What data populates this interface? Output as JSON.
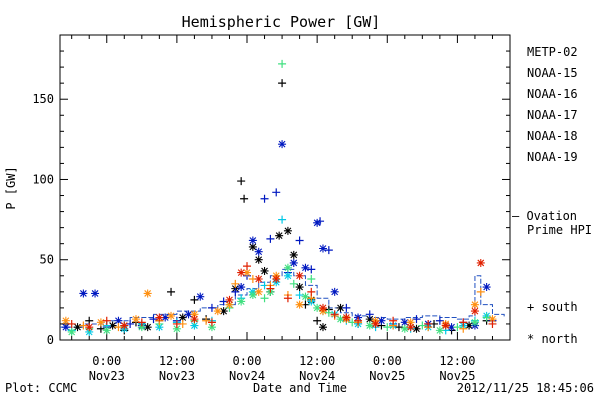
{
  "chart_data": {
    "type": "scatter",
    "title": "Hemispheric Power [GW]",
    "ylabel": "P [GW]",
    "xlabel": "Date and Time",
    "ylim": [
      0,
      190
    ],
    "xlim_hours": [
      -8,
      69
    ],
    "y_ticks": [
      "0",
      "50",
      "100",
      "150"
    ],
    "x_ticks": [
      {
        "hours": 0,
        "time": "0:00",
        "date": "Nov23"
      },
      {
        "hours": 12,
        "time": "12:00",
        "date": "Nov23"
      },
      {
        "hours": 24,
        "time": "0:00",
        "date": "Nov24"
      },
      {
        "hours": 36,
        "time": "12:00",
        "date": "Nov24"
      },
      {
        "hours": 48,
        "time": "0:00",
        "date": "Nov25"
      },
      {
        "hours": 60,
        "time": "12:00",
        "date": "Nov25"
      }
    ],
    "x_axis_unit": "hours since Nov23 0:00 UT",
    "series": [
      {
        "name": "METP-02",
        "color": "#000000",
        "points": [
          [
            -7,
            10,
            "s"
          ],
          [
            -5,
            8,
            "n"
          ],
          [
            -3,
            12,
            "s"
          ],
          [
            -1,
            7,
            "s"
          ],
          [
            1,
            9,
            "n"
          ],
          [
            3,
            6,
            "s"
          ],
          [
            5,
            11,
            "s"
          ],
          [
            7,
            8,
            "n"
          ],
          [
            9,
            12,
            "s"
          ],
          [
            11,
            30,
            "s"
          ],
          [
            13,
            14,
            "n"
          ],
          [
            15,
            25,
            "s"
          ],
          [
            17,
            13,
            "s"
          ],
          [
            20,
            18,
            "n"
          ],
          [
            22,
            32,
            "n"
          ],
          [
            23,
            99,
            "s"
          ],
          [
            23.5,
            88,
            "s"
          ],
          [
            25,
            58,
            "n"
          ],
          [
            26,
            50,
            "n"
          ],
          [
            27,
            43,
            "n"
          ],
          [
            28,
            30,
            "s"
          ],
          [
            29.5,
            65,
            "n"
          ],
          [
            30,
            160,
            "s"
          ],
          [
            31,
            68,
            "n"
          ],
          [
            32,
            53,
            "n"
          ],
          [
            33,
            33,
            "n"
          ],
          [
            34,
            22,
            "s"
          ],
          [
            35,
            25,
            "n"
          ],
          [
            36,
            12,
            "s"
          ],
          [
            37,
            8,
            "n"
          ],
          [
            38,
            19,
            "s"
          ],
          [
            40,
            20,
            "n"
          ],
          [
            41,
            14,
            "s"
          ],
          [
            43,
            10,
            "s"
          ],
          [
            45,
            13,
            "n"
          ],
          [
            47,
            9,
            "s"
          ],
          [
            50,
            8,
            "s"
          ],
          [
            53,
            7,
            "n"
          ],
          [
            56,
            10,
            "s"
          ],
          [
            59,
            6,
            "s"
          ],
          [
            62,
            9,
            "n"
          ],
          [
            65,
            12,
            "s"
          ]
        ]
      },
      {
        "name": "NOAA-15",
        "color": "#0018c0",
        "points": [
          [
            -7,
            8,
            "n"
          ],
          [
            -4,
            29,
            "n"
          ],
          [
            -2,
            29,
            "n"
          ],
          [
            0,
            8,
            "s"
          ],
          [
            2,
            12,
            "n"
          ],
          [
            4,
            10,
            "s"
          ],
          [
            6,
            9,
            "n"
          ],
          [
            8,
            13,
            "s"
          ],
          [
            10,
            14,
            "n"
          ],
          [
            12,
            12,
            "s"
          ],
          [
            14,
            16,
            "n"
          ],
          [
            16,
            27,
            "n"
          ],
          [
            18,
            20,
            "s"
          ],
          [
            20,
            24,
            "s"
          ],
          [
            22,
            30,
            "s"
          ],
          [
            23,
            33,
            "n"
          ],
          [
            24,
            40,
            "s"
          ],
          [
            25,
            62,
            "n"
          ],
          [
            26,
            55,
            "n"
          ],
          [
            27,
            88,
            "s"
          ],
          [
            28,
            63,
            "s"
          ],
          [
            29,
            92,
            "s"
          ],
          [
            30,
            122,
            "n"
          ],
          [
            31,
            42,
            "s"
          ],
          [
            32,
            48,
            "n"
          ],
          [
            33,
            62,
            "s"
          ],
          [
            34,
            45,
            "n"
          ],
          [
            35,
            44,
            "s"
          ],
          [
            36,
            73,
            "n"
          ],
          [
            36.5,
            74,
            "s"
          ],
          [
            37,
            57,
            "n"
          ],
          [
            38,
            56,
            "s"
          ],
          [
            39,
            30,
            "n"
          ],
          [
            41,
            20,
            "s"
          ],
          [
            43,
            14,
            "n"
          ],
          [
            45,
            16,
            "s"
          ],
          [
            47,
            12,
            "n"
          ],
          [
            49,
            10,
            "s"
          ],
          [
            51,
            11,
            "n"
          ],
          [
            53,
            13,
            "s"
          ],
          [
            55,
            10,
            "n"
          ],
          [
            57,
            12,
            "s"
          ],
          [
            59,
            8,
            "n"
          ],
          [
            61,
            11,
            "s"
          ],
          [
            63,
            9,
            "n"
          ],
          [
            65,
            33,
            "n"
          ],
          [
            66,
            12,
            "s"
          ]
        ]
      },
      {
        "name": "NOAA-16",
        "color": "#00c8e6",
        "points": [
          [
            -6,
            6,
            "s"
          ],
          [
            -3,
            5,
            "n"
          ],
          [
            0,
            9,
            "s"
          ],
          [
            3,
            7,
            "n"
          ],
          [
            6,
            10,
            "s"
          ],
          [
            9,
            8,
            "n"
          ],
          [
            12,
            11,
            "s"
          ],
          [
            15,
            9,
            "n"
          ],
          [
            18,
            12,
            "s"
          ],
          [
            21,
            22,
            "n"
          ],
          [
            23,
            26,
            "s"
          ],
          [
            25,
            30,
            "n"
          ],
          [
            27,
            34,
            "s"
          ],
          [
            29,
            36,
            "n"
          ],
          [
            30,
            75,
            "s"
          ],
          [
            31,
            40,
            "n"
          ],
          [
            33,
            28,
            "s"
          ],
          [
            35,
            24,
            "n"
          ],
          [
            37,
            18,
            "s"
          ],
          [
            39,
            16,
            "n"
          ],
          [
            41,
            12,
            "s"
          ],
          [
            43,
            10,
            "n"
          ],
          [
            46,
            8,
            "s"
          ],
          [
            49,
            9,
            "n"
          ],
          [
            52,
            7,
            "s"
          ],
          [
            55,
            8,
            "n"
          ],
          [
            58,
            6,
            "s"
          ],
          [
            61,
            9,
            "n"
          ],
          [
            63,
            12,
            "s"
          ],
          [
            65,
            15,
            "n"
          ]
        ]
      },
      {
        "name": "NOAA-17",
        "color": "#40e080",
        "points": [
          [
            -6,
            5,
            "n"
          ],
          [
            -3,
            7,
            "s"
          ],
          [
            0,
            6,
            "n"
          ],
          [
            3,
            9,
            "s"
          ],
          [
            6,
            8,
            "n"
          ],
          [
            9,
            10,
            "s"
          ],
          [
            12,
            7,
            "n"
          ],
          [
            15,
            12,
            "s"
          ],
          [
            18,
            8,
            "n"
          ],
          [
            21,
            20,
            "s"
          ],
          [
            23,
            24,
            "n"
          ],
          [
            25,
            28,
            "n"
          ],
          [
            27,
            26,
            "s"
          ],
          [
            28,
            30,
            "n"
          ],
          [
            30,
            172,
            "s"
          ],
          [
            31,
            45,
            "n"
          ],
          [
            32,
            35,
            "s"
          ],
          [
            34,
            27,
            "n"
          ],
          [
            35,
            38,
            "s"
          ],
          [
            36,
            20,
            "n"
          ],
          [
            38,
            17,
            "s"
          ],
          [
            40,
            13,
            "n"
          ],
          [
            42,
            11,
            "s"
          ],
          [
            45,
            9,
            "n"
          ],
          [
            48,
            8,
            "s"
          ],
          [
            51,
            7,
            "n"
          ],
          [
            54,
            9,
            "s"
          ],
          [
            57,
            6,
            "n"
          ],
          [
            60,
            8,
            "s"
          ],
          [
            63,
            11,
            "n"
          ],
          [
            65,
            14,
            "s"
          ]
        ]
      },
      {
        "name": "NOAA-18",
        "color": "#ff9010",
        "points": [
          [
            -7,
            12,
            "n"
          ],
          [
            -4,
            9,
            "s"
          ],
          [
            -1,
            11,
            "n"
          ],
          [
            2,
            8,
            "s"
          ],
          [
            5,
            13,
            "n"
          ],
          [
            7,
            29,
            "n"
          ],
          [
            9,
            12,
            "s"
          ],
          [
            11,
            15,
            "n"
          ],
          [
            13,
            10,
            "s"
          ],
          [
            15,
            16,
            "n"
          ],
          [
            17,
            12,
            "s"
          ],
          [
            19,
            18,
            "n"
          ],
          [
            21,
            22,
            "n"
          ],
          [
            22,
            35,
            "s"
          ],
          [
            24,
            42,
            "n"
          ],
          [
            25,
            38,
            "s"
          ],
          [
            26,
            30,
            "n"
          ],
          [
            28,
            34,
            "s"
          ],
          [
            29,
            40,
            "n"
          ],
          [
            31,
            28,
            "s"
          ],
          [
            33,
            22,
            "n"
          ],
          [
            35,
            26,
            "s"
          ],
          [
            37,
            18,
            "n"
          ],
          [
            39,
            15,
            "s"
          ],
          [
            41,
            13,
            "n"
          ],
          [
            43,
            11,
            "s"
          ],
          [
            46,
            12,
            "n"
          ],
          [
            49,
            9,
            "s"
          ],
          [
            52,
            11,
            "n"
          ],
          [
            55,
            8,
            "s"
          ],
          [
            58,
            10,
            "n"
          ],
          [
            61,
            7,
            "s"
          ],
          [
            63,
            22,
            "n"
          ],
          [
            64,
            30,
            "s"
          ],
          [
            66,
            13,
            "n"
          ]
        ]
      },
      {
        "name": "NOAA-19",
        "color": "#e02000",
        "points": [
          [
            -6,
            10,
            "s"
          ],
          [
            -3,
            8,
            "n"
          ],
          [
            0,
            12,
            "s"
          ],
          [
            3,
            9,
            "n"
          ],
          [
            6,
            11,
            "s"
          ],
          [
            9,
            14,
            "n"
          ],
          [
            12,
            10,
            "s"
          ],
          [
            15,
            13,
            "n"
          ],
          [
            18,
            11,
            "s"
          ],
          [
            21,
            25,
            "n"
          ],
          [
            23,
            42,
            "n"
          ],
          [
            24,
            46,
            "s"
          ],
          [
            26,
            38,
            "n"
          ],
          [
            28,
            32,
            "s"
          ],
          [
            29,
            38,
            "n"
          ],
          [
            31,
            26,
            "s"
          ],
          [
            33,
            40,
            "n"
          ],
          [
            35,
            30,
            "s"
          ],
          [
            37,
            20,
            "n"
          ],
          [
            39,
            16,
            "s"
          ],
          [
            41,
            14,
            "n"
          ],
          [
            43,
            12,
            "s"
          ],
          [
            46,
            10,
            "n"
          ],
          [
            49,
            12,
            "s"
          ],
          [
            52,
            8,
            "n"
          ],
          [
            55,
            10,
            "s"
          ],
          [
            58,
            9,
            "n"
          ],
          [
            61,
            11,
            "s"
          ],
          [
            63,
            18,
            "n"
          ],
          [
            64,
            48,
            "n"
          ],
          [
            66,
            10,
            "s"
          ]
        ]
      }
    ],
    "ovation": {
      "label_line1": "– Ovation",
      "label_line2": "Prime HPI",
      "color": "#2050c0",
      "points": [
        [
          -8,
          8
        ],
        [
          -4,
          10
        ],
        [
          0,
          12
        ],
        [
          4,
          14
        ],
        [
          8,
          16
        ],
        [
          12,
          18
        ],
        [
          16,
          20
        ],
        [
          19,
          22
        ],
        [
          22,
          28
        ],
        [
          24,
          32
        ],
        [
          26,
          36
        ],
        [
          28,
          40
        ],
        [
          30,
          44
        ],
        [
          32,
          40
        ],
        [
          34,
          34
        ],
        [
          36,
          26
        ],
        [
          38,
          20
        ],
        [
          40,
          17
        ],
        [
          42,
          15
        ],
        [
          45,
          14
        ],
        [
          48,
          13
        ],
        [
          51,
          14
        ],
        [
          54,
          15
        ],
        [
          57,
          14
        ],
        [
          60,
          13
        ],
        [
          62,
          15
        ],
        [
          63,
          40
        ],
        [
          64,
          22
        ],
        [
          66,
          16
        ],
        [
          68,
          14
        ]
      ]
    },
    "legend": {
      "placement": "right",
      "marker_south_label": "+ south",
      "marker_north_label": "* north"
    }
  },
  "footer": {
    "plot_credit": "Plot: CCMC",
    "timestamp": "2012/11/25 18:45:06"
  }
}
